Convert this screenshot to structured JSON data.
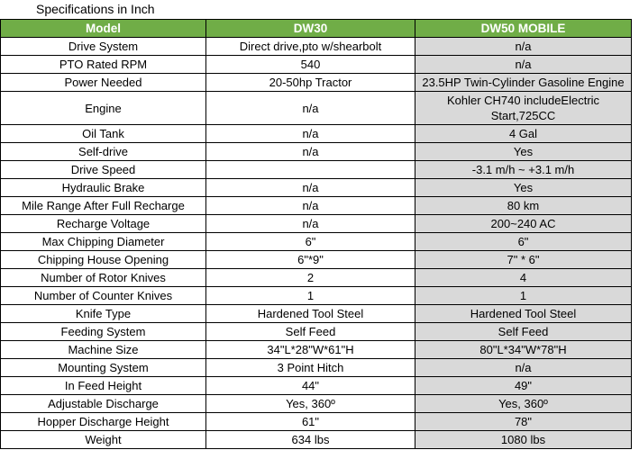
{
  "title": "Specifications in Inch",
  "colors": {
    "header_bg": "#70AD47",
    "header_text": "#FFFFFF",
    "value_column_bg": "#D9D9D9",
    "border": "#000000"
  },
  "chart_data": {
    "type": "table",
    "title": "Specifications in Inch",
    "columns": [
      "Model",
      "DW30",
      "DW50 MOBILE"
    ],
    "rows": [
      [
        "Drive System",
        "Direct drive,pto w/shearbolt",
        "n/a"
      ],
      [
        "PTO Rated RPM",
        "540",
        "n/a"
      ],
      [
        "Power Needed",
        "20-50hp Tractor",
        "23.5HP Twin-Cylinder Gasoline Engine"
      ],
      [
        "Engine",
        "n/a",
        "Kohler CH740 includeElectric Start,725CC"
      ],
      [
        "Oil Tank",
        "n/a",
        "4 Gal"
      ],
      [
        "Self-drive",
        "n/a",
        "Yes"
      ],
      [
        "Drive Speed",
        "",
        "-3.1 m/h ~ +3.1 m/h"
      ],
      [
        "Hydraulic Brake",
        "n/a",
        "Yes"
      ],
      [
        "Mile Range After Full Recharge",
        "n/a",
        "80 km"
      ],
      [
        "Recharge Voltage",
        "n/a",
        "200~240 AC"
      ],
      [
        "Max Chipping Diameter",
        "6\"",
        "6\""
      ],
      [
        "Chipping House Opening",
        "6\"*9\"",
        "7\" * 6\""
      ],
      [
        "Number of Rotor Knives",
        "2",
        "4"
      ],
      [
        "Number of Counter Knives",
        "1",
        "1"
      ],
      [
        "Knife Type",
        "Hardened Tool Steel",
        "Hardened Tool Steel"
      ],
      [
        "Feeding System",
        "Self Feed",
        "Self Feed"
      ],
      [
        "Machine Size",
        "34\"L*28\"W*61\"H",
        "80\"L*34\"W*78\"H"
      ],
      [
        "Mounting System",
        "3 Point Hitch",
        "n/a"
      ],
      [
        "In Feed Height",
        "44\"",
        "49\""
      ],
      [
        "Adjustable Discharge",
        "Yes, 360º",
        "Yes, 360º"
      ],
      [
        "Hopper Discharge Height",
        "61\"",
        "78\""
      ],
      [
        "Weight",
        "634 lbs",
        "1080 lbs"
      ]
    ]
  }
}
